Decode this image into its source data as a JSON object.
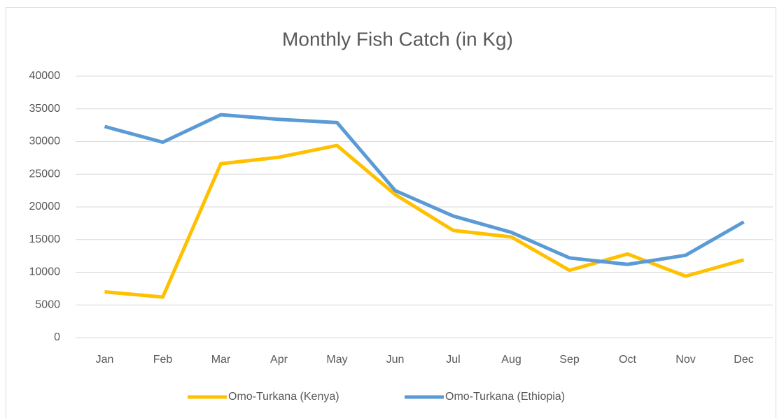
{
  "chart_data": {
    "type": "line",
    "title": "Monthly Fish Catch (in Kg)",
    "categories": [
      "Jan",
      "Feb",
      "Mar",
      "Apr",
      "May",
      "Jun",
      "Jul",
      "Aug",
      "Sep",
      "Oct",
      "Nov",
      "Dec"
    ],
    "series": [
      {
        "name": "Omo-Turkana (Kenya)",
        "color": "#ffc000",
        "values": [
          7000,
          6200,
          26600,
          27600,
          29400,
          21900,
          16400,
          15400,
          10300,
          12800,
          9400,
          11900
        ]
      },
      {
        "name": "Omo-Turkana (Ethiopia)",
        "color": "#5b9bd5",
        "values": [
          32300,
          29900,
          34100,
          33400,
          32900,
          22500,
          18600,
          16100,
          12200,
          11200,
          12600,
          17700
        ]
      }
    ],
    "ylim": [
      0,
      40000
    ],
    "yticks": [
      0,
      5000,
      10000,
      15000,
      20000,
      25000,
      30000,
      35000,
      40000
    ],
    "grid": true,
    "legend": "bottom"
  }
}
